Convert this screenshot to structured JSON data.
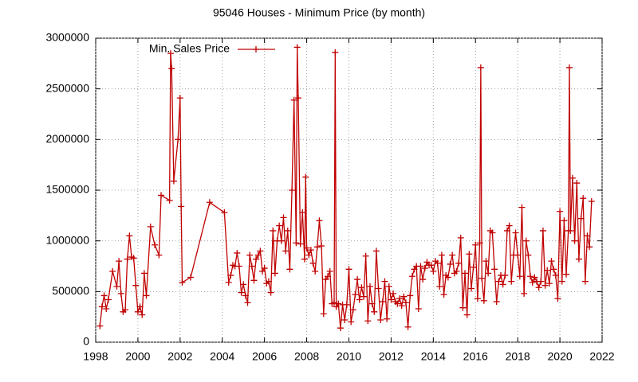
{
  "chart_data": {
    "type": "line",
    "title": "95046 Houses - Minimum Price (by month)",
    "x": [
      1998.2,
      1998.3,
      1998.4,
      1998.5,
      1998.6,
      1998.8,
      1999.0,
      1999.1,
      1999.2,
      1999.3,
      1999.4,
      1999.5,
      1999.6,
      1999.7,
      1999.8,
      1999.9,
      2000.0,
      2000.1,
      2000.2,
      2000.3,
      2000.4,
      2000.6,
      2000.8,
      2001.0,
      2001.1,
      2001.5,
      2001.55,
      2001.6,
      2001.7,
      2001.9,
      2002.0,
      2002.05,
      2002.1,
      2002.5,
      2003.4,
      2004.1,
      2004.3,
      2004.4,
      2004.5,
      2004.6,
      2004.7,
      2004.8,
      2004.9,
      2005.0,
      2005.1,
      2005.2,
      2005.3,
      2005.4,
      2005.5,
      2005.6,
      2005.7,
      2005.8,
      2005.9,
      2006.0,
      2006.1,
      2006.2,
      2006.3,
      2006.4,
      2006.5,
      2006.6,
      2006.7,
      2006.8,
      2006.9,
      2007.0,
      2007.1,
      2007.2,
      2007.3,
      2007.4,
      2007.5,
      2007.55,
      2007.6,
      2007.7,
      2007.8,
      2007.9,
      2007.95,
      2008.0,
      2008.1,
      2008.2,
      2008.3,
      2008.4,
      2008.5,
      2008.6,
      2008.7,
      2008.8,
      2008.9,
      2009.0,
      2009.1,
      2009.2,
      2009.3,
      2009.35,
      2009.4,
      2009.5,
      2009.6,
      2009.7,
      2009.8,
      2009.9,
      2010.0,
      2010.1,
      2010.2,
      2010.3,
      2010.4,
      2010.5,
      2010.6,
      2010.7,
      2010.8,
      2010.9,
      2011.0,
      2011.1,
      2011.2,
      2011.3,
      2011.4,
      2011.5,
      2011.6,
      2011.7,
      2011.8,
      2011.9,
      2012.0,
      2012.1,
      2012.2,
      2012.3,
      2012.4,
      2012.5,
      2012.6,
      2012.7,
      2012.8,
      2012.9,
      2013.0,
      2013.1,
      2013.2,
      2013.3,
      2013.4,
      2013.5,
      2013.6,
      2013.7,
      2013.8,
      2013.9,
      2014.0,
      2014.1,
      2014.2,
      2014.3,
      2014.4,
      2014.5,
      2014.6,
      2014.7,
      2014.8,
      2014.9,
      2015.0,
      2015.1,
      2015.2,
      2015.3,
      2015.4,
      2015.5,
      2015.6,
      2015.7,
      2015.8,
      2015.9,
      2016.0,
      2016.1,
      2016.2,
      2016.25,
      2016.3,
      2016.4,
      2016.5,
      2016.6,
      2016.7,
      2016.8,
      2016.9,
      2017.0,
      2017.1,
      2017.2,
      2017.3,
      2017.4,
      2017.5,
      2017.6,
      2017.7,
      2017.8,
      2017.9,
      2018.0,
      2018.1,
      2018.2,
      2018.3,
      2018.4,
      2018.5,
      2018.6,
      2018.7,
      2018.8,
      2018.9,
      2019.0,
      2019.1,
      2019.2,
      2019.3,
      2019.4,
      2019.5,
      2019.6,
      2019.7,
      2019.8,
      2019.9,
      2020.0,
      2020.1,
      2020.2,
      2020.3,
      2020.4,
      2020.45,
      2020.5,
      2020.6,
      2020.7,
      2020.8,
      2020.9,
      2021.0,
      2021.1,
      2021.2,
      2021.3,
      2021.4,
      2021.5
    ],
    "series": [
      {
        "name": "Min. Sales Price",
        "color": "#c00000",
        "values": [
          160000,
          350000,
          460000,
          330000,
          420000,
          700000,
          550000,
          800000,
          480000,
          300000,
          320000,
          820000,
          1050000,
          840000,
          830000,
          560000,
          300000,
          350000,
          270000,
          680000,
          460000,
          1140000,
          960000,
          860000,
          1450000,
          1400000,
          2850000,
          2700000,
          1590000,
          2000000,
          2410000,
          1340000,
          590000,
          640000,
          1380000,
          1280000,
          590000,
          660000,
          760000,
          750000,
          880000,
          750000,
          490000,
          570000,
          460000,
          390000,
          860000,
          750000,
          610000,
          820000,
          860000,
          900000,
          700000,
          730000,
          580000,
          600000,
          490000,
          1100000,
          680000,
          1000000,
          1150000,
          1000000,
          1230000,
          900000,
          1100000,
          720000,
          1500000,
          2390000,
          980000,
          2910000,
          2410000,
          970000,
          1280000,
          820000,
          1630000,
          930000,
          860000,
          910000,
          780000,
          700000,
          940000,
          1200000,
          950000,
          280000,
          620000,
          650000,
          700000,
          380000,
          390000,
          2860000,
          350000,
          380000,
          140000,
          370000,
          220000,
          370000,
          720000,
          200000,
          320000,
          470000,
          620000,
          420000,
          540000,
          450000,
          850000,
          210000,
          550000,
          380000,
          300000,
          900000,
          530000,
          220000,
          400000,
          600000,
          230000,
          550000,
          420000,
          480000,
          400000,
          380000,
          430000,
          360000,
          450000,
          390000,
          150000,
          460000,
          650000,
          720000,
          750000,
          330000,
          750000,
          620000,
          730000,
          790000,
          760000,
          760000,
          700000,
          800000,
          780000,
          550000,
          860000,
          470000,
          660000,
          640000,
          770000,
          860000,
          680000,
          700000,
          780000,
          1030000,
          340000,
          680000,
          270000,
          870000,
          530000,
          740000,
          960000,
          430000,
          980000,
          2710000,
          630000,
          410000,
          800000,
          680000,
          1100000,
          1080000,
          720000,
          400000,
          600000,
          660000,
          570000,
          660000,
          1100000,
          1150000,
          600000,
          860000,
          1080000,
          860000,
          650000,
          1330000,
          480000,
          1000000,
          860000,
          650000,
          590000,
          640000,
          600000,
          540000,
          600000,
          1100000,
          560000,
          710000,
          580000,
          800000,
          720000,
          660000,
          430000,
          1290000,
          600000,
          1200000,
          670000,
          1100000,
          2710000,
          1100000,
          1620000,
          1000000,
          1570000,
          820000,
          1220000,
          1420000,
          600000,
          1050000,
          940000,
          1390000
        ]
      }
    ],
    "xlim": [
      1998,
      2022
    ],
    "xticks": [
      1998,
      2000,
      2002,
      2004,
      2006,
      2008,
      2010,
      2012,
      2014,
      2016,
      2018,
      2020,
      2022
    ],
    "ylim": [
      0,
      3000000
    ],
    "yticks": [
      0,
      500000,
      1000000,
      1500000,
      2000000,
      2500000,
      3000000
    ],
    "grid": true,
    "legend": "top-left"
  }
}
